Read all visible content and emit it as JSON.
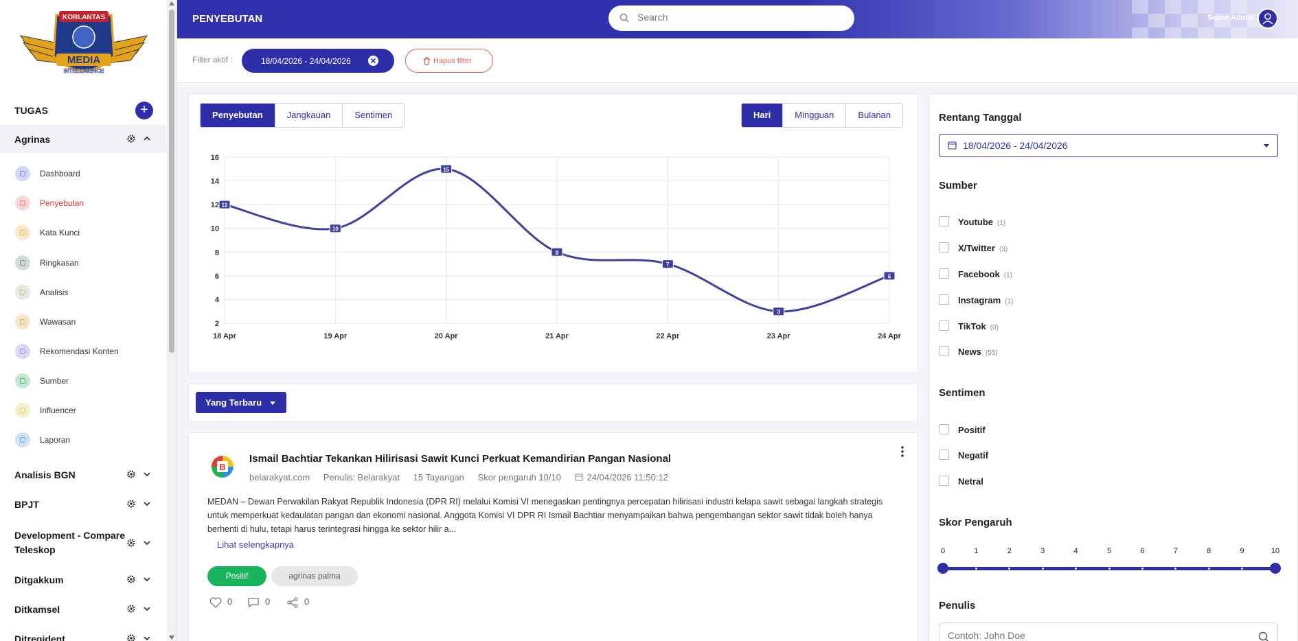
{
  "brand": {
    "logo_top": "KORLANTAS",
    "logo_main": "MEDIA",
    "logo_sub": "INTELLIGENCE"
  },
  "sidebar": {
    "tasks_label": "TUGAS",
    "active_group": "Agrinas",
    "items": [
      {
        "label": "Dashboard",
        "icon": "dashboard-icon",
        "color": "#7b87e6"
      },
      {
        "label": "Penyebutan",
        "icon": "mention-icon",
        "color": "#e98a8a"
      },
      {
        "label": "Kata Kunci",
        "icon": "keyword-icon",
        "color": "#e8b95a"
      },
      {
        "label": "Ringkasan",
        "icon": "summary-icon",
        "color": "#7c9a7a"
      },
      {
        "label": "Analisis",
        "icon": "analysis-icon",
        "color": "#b9b9a6"
      },
      {
        "label": "Wawasan",
        "icon": "insight-icon",
        "color": "#e0b25e"
      },
      {
        "label": "Rekomendasi Konten",
        "icon": "recommend-icon",
        "color": "#9b85e0"
      },
      {
        "label": "Sumber",
        "icon": "source-icon",
        "color": "#4dbb7a"
      },
      {
        "label": "Influencer",
        "icon": "influencer-icon",
        "color": "#d8d36a"
      },
      {
        "label": "Laporan",
        "icon": "report-icon",
        "color": "#6fa7e0"
      }
    ],
    "groups": [
      {
        "label": "Analisis BGN"
      },
      {
        "label": "BPJT"
      },
      {
        "label": "Development - Compare Teleskop"
      },
      {
        "label": "Ditgakkum"
      },
      {
        "label": "Ditkamsel"
      },
      {
        "label": "Ditregident"
      }
    ]
  },
  "header": {
    "title": "PENYEBUTAN",
    "search_placeholder": "Search",
    "user_name": "Super Admin"
  },
  "filter_bar": {
    "label": "Filter aktif :",
    "date_chip": "18/04/2026 - 24/04/2026",
    "clear_label": "Hapus filter"
  },
  "chart_tabs": {
    "metric": [
      "Penyebutan",
      "Jangkauan",
      "Sentimen"
    ],
    "period": [
      "Hari",
      "Mingguan",
      "Bulanan"
    ]
  },
  "chart_data": {
    "type": "line",
    "categories": [
      "18 Apr",
      "19 Apr",
      "20 Apr",
      "21 Apr",
      "22 Apr",
      "23 Apr",
      "24 Apr"
    ],
    "values": [
      12,
      10,
      15,
      8,
      7,
      3,
      6
    ],
    "ylim": [
      2,
      16
    ],
    "yticks": [
      2,
      4,
      6,
      8,
      10,
      12,
      14,
      16
    ],
    "grid": true,
    "color": "#3f3fa0"
  },
  "sort": {
    "label": "Yang Terbaru"
  },
  "article": {
    "title": "Ismail Bachtiar Tekankan Hilirisasi Sawit Kunci Perkuat Kemandirian Pangan Nasional",
    "source": "belarakyat.com",
    "author": "Penulis: Belarakyat",
    "views": "15 Tayangan",
    "score": "Skor pengaruh 10/10",
    "date": "24/04/2026 11:50:12",
    "body": "MEDAN – Dewan Perwakilan Rakyat Republik Indonesia (DPR RI) melalui Komisi VI menegaskan pentingnya percepatan hilirisasi industri kelapa sawit sebagai langkah strategis untuk memperkuat kedaulatan pangan dan ekonomi nasional. Anggota Komisi VI DPR RI Ismail Bachtiar menyampaikan bahwa pengembangan sektor sawit tidak boleh hanya berhenti di hulu, tetapi harus terintegrasi hingga ke sektor hilir a...",
    "read_more": "Lihat selengkapnya",
    "sentiment": "Positif",
    "keyword": "agrinas palma",
    "likes": "0",
    "comments": "0",
    "shares": "0",
    "avatar_letter": "B"
  },
  "panel": {
    "date_heading": "Rentang Tanggal",
    "date_value": "18/04/2026 - 24/04/2026",
    "source_heading": "Sumber",
    "sources": [
      {
        "label": "Youtube",
        "count": "(1)"
      },
      {
        "label": "X/Twitter",
        "count": "(3)"
      },
      {
        "label": "Facebook",
        "count": "(1)"
      },
      {
        "label": "Instagram",
        "count": "(1)"
      },
      {
        "label": "TikTok",
        "count": "(0)"
      },
      {
        "label": "News",
        "count": "(55)"
      }
    ],
    "sentiment_heading": "Sentimen",
    "sentiments": [
      "Positif",
      "Negatif",
      "Netral"
    ],
    "score_heading": "Skor Pengaruh",
    "score_ticks": [
      "0",
      "1",
      "2",
      "3",
      "4",
      "5",
      "6",
      "7",
      "8",
      "9",
      "10"
    ],
    "score_range": [
      0,
      10
    ],
    "writer_heading": "Penulis",
    "writer_placeholder": "Contoh: John Doe"
  }
}
